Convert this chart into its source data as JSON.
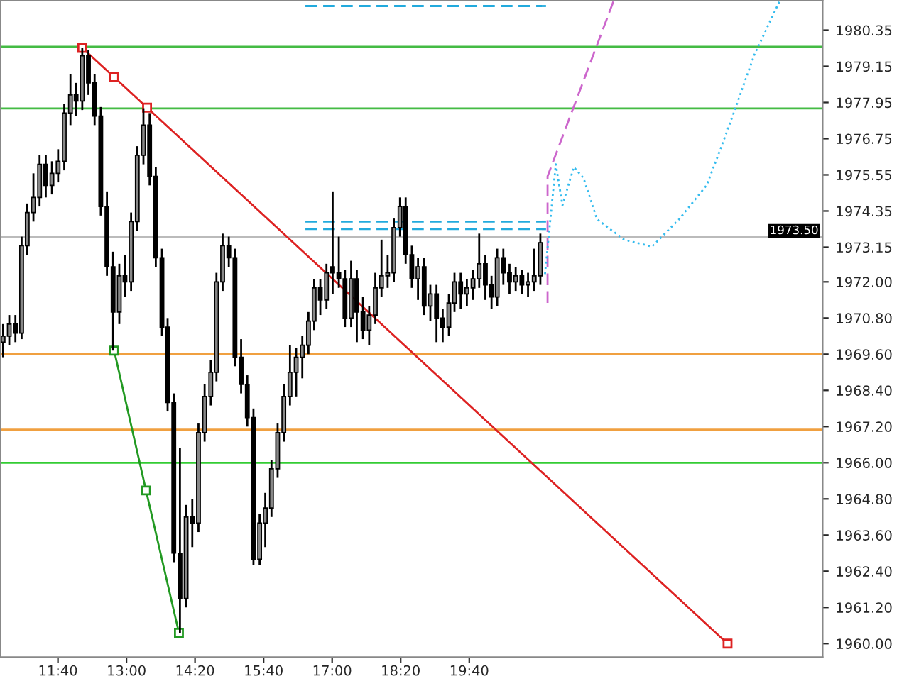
{
  "chart_data": {
    "type": "candlestick",
    "x": [
      10.6,
      10.72,
      10.84,
      10.96,
      11.07,
      11.19,
      11.31,
      11.43,
      11.55,
      11.67,
      11.79,
      11.91,
      12.02,
      12.14,
      12.26,
      12.38,
      12.5,
      12.62,
      12.74,
      12.86,
      12.97,
      13.09,
      13.21,
      13.33,
      13.45,
      13.57,
      13.69,
      13.8,
      13.92,
      14.04,
      14.16,
      14.28,
      14.4,
      14.52,
      14.64,
      14.75,
      14.87,
      14.99,
      15.11,
      15.23,
      15.35,
      15.47,
      15.59,
      15.7,
      15.82,
      15.94,
      16.06,
      16.18,
      16.3,
      16.42,
      16.54,
      16.65,
      16.77,
      16.89,
      17.01,
      17.13,
      17.25,
      17.37,
      17.48,
      17.6,
      17.72,
      17.84,
      17.96,
      18.08,
      18.2,
      18.32,
      18.43,
      18.55,
      18.67,
      18.79,
      18.91,
      19.03,
      19.15,
      19.27,
      19.38,
      19.5,
      19.62,
      19.74,
      19.86,
      19.98,
      20.1,
      20.21,
      20.33,
      20.45,
      20.57,
      20.69,
      20.81,
      20.93,
      21.05
    ],
    "ohlc": [
      [
        1970.0,
        1970.6,
        1969.5,
        1970.2
      ],
      [
        1970.2,
        1970.9,
        1969.9,
        1970.6
      ],
      [
        1970.6,
        1970.9,
        1970.0,
        1970.3
      ],
      [
        1970.3,
        1973.5,
        1970.1,
        1973.2
      ],
      [
        1973.2,
        1974.6,
        1972.9,
        1974.3
      ],
      [
        1974.3,
        1975.6,
        1974.0,
        1974.8
      ],
      [
        1974.8,
        1976.2,
        1974.5,
        1975.9
      ],
      [
        1975.9,
        1976.2,
        1974.8,
        1975.2
      ],
      [
        1975.2,
        1976.0,
        1974.9,
        1975.6
      ],
      [
        1975.6,
        1976.4,
        1975.3,
        1976.0
      ],
      [
        1976.0,
        1977.9,
        1975.7,
        1977.6
      ],
      [
        1977.6,
        1978.9,
        1977.2,
        1978.2
      ],
      [
        1978.2,
        1978.6,
        1977.5,
        1978.0
      ],
      [
        1978.0,
        1979.76,
        1977.7,
        1979.5
      ],
      [
        1979.5,
        1979.7,
        1978.2,
        1978.6
      ],
      [
        1978.6,
        1978.9,
        1977.2,
        1977.5
      ],
      [
        1977.5,
        1977.8,
        1974.2,
        1974.5
      ],
      [
        1974.5,
        1975.0,
        1972.2,
        1972.5
      ],
      [
        1972.5,
        1973.0,
        1969.72,
        1971.0
      ],
      [
        1971.0,
        1972.6,
        1970.6,
        1972.2
      ],
      [
        1972.2,
        1972.9,
        1971.5,
        1972.0
      ],
      [
        1972.0,
        1974.3,
        1971.7,
        1974.0
      ],
      [
        1974.0,
        1976.5,
        1973.7,
        1976.2
      ],
      [
        1976.2,
        1977.76,
        1975.9,
        1977.2
      ],
      [
        1977.2,
        1977.6,
        1975.2,
        1975.5
      ],
      [
        1975.5,
        1975.8,
        1972.5,
        1972.8
      ],
      [
        1972.8,
        1973.1,
        1970.2,
        1970.5
      ],
      [
        1970.5,
        1970.8,
        1967.7,
        1968.0
      ],
      [
        1968.0,
        1968.3,
        1962.7,
        1963.0
      ],
      [
        1963.0,
        1966.5,
        1960.36,
        1961.5
      ],
      [
        1961.5,
        1964.6,
        1961.2,
        1964.2
      ],
      [
        1964.2,
        1964.8,
        1963.2,
        1964.0
      ],
      [
        1964.0,
        1967.3,
        1963.7,
        1967.0
      ],
      [
        1967.0,
        1968.6,
        1966.7,
        1968.2
      ],
      [
        1968.2,
        1969.4,
        1967.9,
        1969.0
      ],
      [
        1969.0,
        1972.3,
        1968.7,
        1972.0
      ],
      [
        1972.0,
        1973.6,
        1971.7,
        1973.2
      ],
      [
        1973.2,
        1973.5,
        1972.5,
        1972.8
      ],
      [
        1972.8,
        1973.1,
        1969.2,
        1969.5
      ],
      [
        1969.5,
        1970.1,
        1968.3,
        1968.6
      ],
      [
        1968.6,
        1968.9,
        1967.2,
        1967.5
      ],
      [
        1967.5,
        1967.8,
        1962.6,
        1962.8
      ],
      [
        1962.8,
        1964.3,
        1962.6,
        1964.0
      ],
      [
        1964.0,
        1965.0,
        1963.2,
        1964.5
      ],
      [
        1964.5,
        1966.1,
        1964.2,
        1965.8
      ],
      [
        1965.8,
        1967.3,
        1965.5,
        1967.0
      ],
      [
        1967.0,
        1968.6,
        1966.7,
        1968.2
      ],
      [
        1968.2,
        1969.9,
        1967.9,
        1969.0
      ],
      [
        1969.0,
        1969.8,
        1968.2,
        1969.5
      ],
      [
        1969.5,
        1970.2,
        1968.8,
        1969.9
      ],
      [
        1969.9,
        1971.0,
        1969.6,
        1970.7
      ],
      [
        1970.7,
        1972.1,
        1970.4,
        1971.8
      ],
      [
        1971.8,
        1972.1,
        1970.9,
        1971.4
      ],
      [
        1971.4,
        1972.6,
        1971.1,
        1972.3
      ],
      [
        1972.5,
        1975.0,
        1971.6,
        1972.3
      ],
      [
        1972.3,
        1973.5,
        1971.8,
        1972.1
      ],
      [
        1972.1,
        1972.4,
        1970.5,
        1970.8
      ],
      [
        1970.8,
        1972.7,
        1970.5,
        1972.1
      ],
      [
        1972.1,
        1972.4,
        1970.0,
        1971.0
      ],
      [
        1971.0,
        1971.5,
        1970.1,
        1970.4
      ],
      [
        1970.4,
        1971.2,
        1969.9,
        1970.9
      ],
      [
        1970.9,
        1972.3,
        1970.6,
        1971.8
      ],
      [
        1971.8,
        1973.4,
        1971.5,
        1972.2
      ],
      [
        1972.2,
        1972.9,
        1971.8,
        1972.3
      ],
      [
        1972.3,
        1974.1,
        1972.0,
        1973.8
      ],
      [
        1973.8,
        1974.8,
        1973.5,
        1974.5
      ],
      [
        1974.5,
        1974.8,
        1972.6,
        1972.9
      ],
      [
        1972.9,
        1973.2,
        1971.8,
        1972.1
      ],
      [
        1972.1,
        1972.8,
        1971.4,
        1972.5
      ],
      [
        1972.5,
        1972.8,
        1970.9,
        1971.2
      ],
      [
        1971.2,
        1971.9,
        1970.7,
        1971.6
      ],
      [
        1971.6,
        1971.9,
        1970.0,
        1970.8
      ],
      [
        1970.8,
        1971.1,
        1970.0,
        1970.5
      ],
      [
        1970.5,
        1971.6,
        1970.2,
        1971.3
      ],
      [
        1971.3,
        1972.3,
        1971.0,
        1972.0
      ],
      [
        1972.0,
        1972.3,
        1971.1,
        1971.6
      ],
      [
        1971.6,
        1972.1,
        1971.2,
        1971.8
      ],
      [
        1971.8,
        1972.4,
        1971.4,
        1972.1
      ],
      [
        1972.1,
        1973.6,
        1971.8,
        1972.6
      ],
      [
        1972.6,
        1972.9,
        1971.4,
        1971.9
      ],
      [
        1971.9,
        1972.2,
        1971.1,
        1971.5
      ],
      [
        1971.5,
        1973.1,
        1971.2,
        1972.8
      ],
      [
        1972.8,
        1973.1,
        1971.9,
        1972.3
      ],
      [
        1972.3,
        1972.6,
        1971.6,
        1972.0
      ],
      [
        1972.0,
        1972.5,
        1971.7,
        1972.2
      ],
      [
        1972.2,
        1972.4,
        1971.6,
        1971.9
      ],
      [
        1971.9,
        1972.3,
        1971.5,
        1972.0
      ],
      [
        1972.0,
        1973.1,
        1971.7,
        1972.2
      ],
      [
        1972.2,
        1973.6,
        1971.9,
        1973.3
      ]
    ],
    "series": [
      {
        "type": "line",
        "color": "#dd2222",
        "x": [
          12.14,
          12.76,
          13.4,
          24.69
        ],
        "values": [
          1979.76,
          1978.79,
          1977.78,
          1960.0
        ],
        "marker": "square",
        "line_style": "solid"
      },
      {
        "type": "line",
        "color": "#229922",
        "x": [
          12.76,
          13.38,
          14.02
        ],
        "values": [
          1969.72,
          1965.08,
          1960.36
        ],
        "marker": "square",
        "line_style": "solid"
      },
      {
        "type": "line",
        "color": "#22aadd",
        "x": [
          16.48,
          21.16
        ],
        "values": [
          1974.0,
          1974.0
        ],
        "line_style": "dashed"
      },
      {
        "type": "line",
        "color": "#22aadd",
        "x": [
          16.48,
          21.16
        ],
        "values": [
          1973.75,
          1973.75
        ],
        "line_style": "dashed"
      },
      {
        "type": "line",
        "color": "#22aadd",
        "x": [
          16.48,
          21.16
        ],
        "values": [
          1981.15,
          1981.15
        ],
        "line_style": "dashed"
      },
      {
        "type": "line",
        "color": "#cc66cc",
        "x": [
          21.19,
          21.19,
          22.47
        ],
        "values": [
          1971.3,
          1975.5,
          1981.3
        ],
        "line_style": "dashed"
      },
      {
        "type": "line",
        "color": "#33bbee",
        "x": [
          21.14,
          21.35,
          21.48,
          21.7,
          21.89,
          22.15,
          22.68,
          23.22,
          23.75,
          24.29,
          24.69,
          25.21,
          25.7
        ],
        "values": [
          1972.26,
          1975.9,
          1974.54,
          1975.81,
          1975.44,
          1974.08,
          1973.4,
          1973.17,
          1974.08,
          1975.22,
          1977.03,
          1979.53,
          1981.3
        ],
        "line_style": "dotted"
      }
    ],
    "ref_lines": [
      {
        "axis": "y",
        "value": 1979.8,
        "color": "#44bb44"
      },
      {
        "axis": "y",
        "value": 1977.75,
        "color": "#44bb44"
      },
      {
        "axis": "y",
        "value": 1973.5,
        "color": "#bbbbbb",
        "label": "1973.50"
      },
      {
        "axis": "y",
        "value": 1969.6,
        "color": "#f0a040"
      },
      {
        "axis": "y",
        "value": 1967.1,
        "color": "#f0a040"
      },
      {
        "axis": "y",
        "value": 1966.0,
        "color": "#33cc33"
      }
    ],
    "xlim": [
      10.54,
      26.54
    ],
    "xticks": [
      {
        "value": 11.667,
        "label": "11:40"
      },
      {
        "value": 13.0,
        "label": "13:00"
      },
      {
        "value": 14.333,
        "label": "14:20"
      },
      {
        "value": 15.667,
        "label": "15:40"
      },
      {
        "value": 17.0,
        "label": "17:00"
      },
      {
        "value": 18.333,
        "label": "18:20"
      },
      {
        "value": 19.667,
        "label": "19:40"
      }
    ],
    "ylim": [
      1959.55,
      1981.35
    ],
    "yticks": [
      {
        "value": 1960.0,
        "label": "1960.00"
      },
      {
        "value": 1961.2,
        "label": "1961.20"
      },
      {
        "value": 1962.4,
        "label": "1962.40"
      },
      {
        "value": 1963.6,
        "label": "1963.60"
      },
      {
        "value": 1964.8,
        "label": "1964.80"
      },
      {
        "value": 1966.0,
        "label": "1966.00"
      },
      {
        "value": 1967.2,
        "label": "1967.20"
      },
      {
        "value": 1968.4,
        "label": "1968.40"
      },
      {
        "value": 1969.6,
        "label": "1969.60"
      },
      {
        "value": 1970.8,
        "label": "1970.80"
      },
      {
        "value": 1972.0,
        "label": "1972.00"
      },
      {
        "value": 1973.15,
        "label": "1973.15"
      },
      {
        "value": 1974.35,
        "label": "1974.35"
      },
      {
        "value": 1975.55,
        "label": "1975.55"
      },
      {
        "value": 1976.75,
        "label": "1976.75"
      },
      {
        "value": 1977.95,
        "label": "1977.95"
      },
      {
        "value": 1979.15,
        "label": "1979.15"
      },
      {
        "value": 1980.35,
        "label": "1980.35"
      }
    ],
    "grid": false,
    "legend": false
  }
}
